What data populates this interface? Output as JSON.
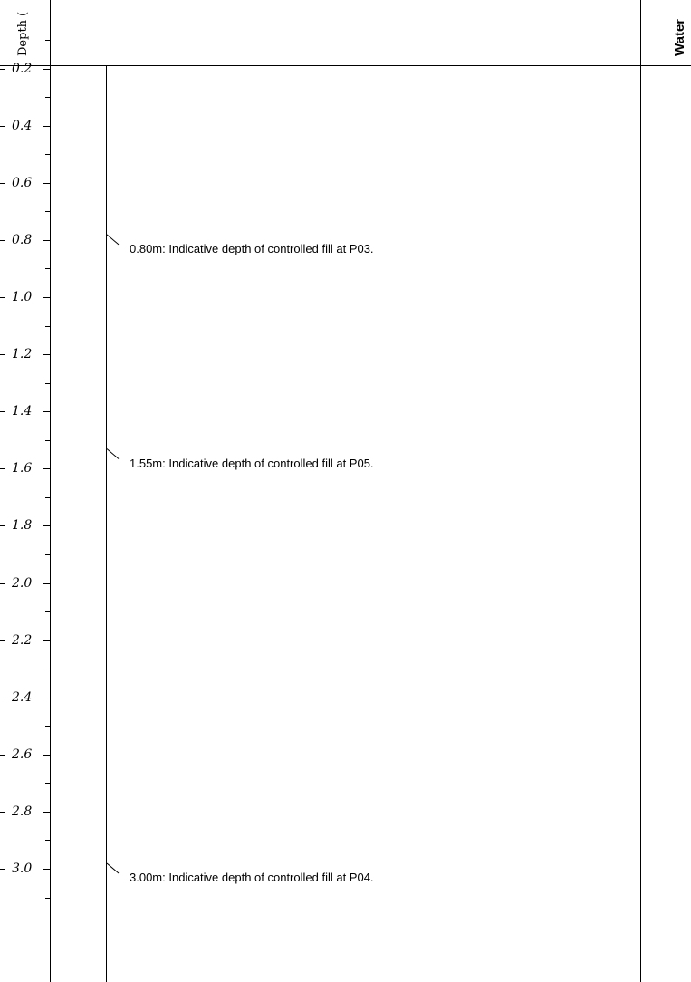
{
  "header": {
    "depth_label": "Depth (",
    "water_label": "Water"
  },
  "depth_axis": {
    "unit": "m",
    "ticks": [
      "0.2",
      "0.4",
      "0.6",
      "0.8",
      "1.0",
      "1.2",
      "1.4",
      "1.6",
      "1.8",
      "2.0",
      "2.2",
      "2.4",
      "2.6",
      "2.8",
      "3.0"
    ]
  },
  "annotations": [
    {
      "depth": 0.8,
      "text": "0.80m: Indicative depth of controlled fill at P03."
    },
    {
      "depth": 1.55,
      "text": "1.55m: Indicative depth of controlled fill at P05."
    },
    {
      "depth": 3.0,
      "text": "3.00m: Indicative depth of controlled fill at P04."
    }
  ]
}
